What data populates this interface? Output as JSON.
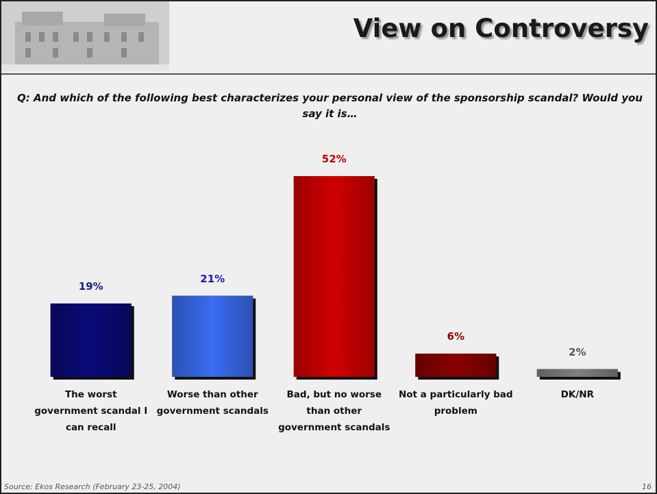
{
  "chart_data": {
    "type": "bar",
    "title": "View on Controversy",
    "subtitle": "Q: And which of the following best characterizes your personal view of the sponsorship scandal? Would you say it is…",
    "categories": [
      "The worst government scandal I can recall",
      "Worse than other government scandals",
      "Bad, but no worse than other government scandals",
      "Not a particularly bad problem",
      "DK/NR"
    ],
    "values": [
      19,
      21,
      52,
      6,
      2
    ],
    "value_labels": [
      "19%",
      "21%",
      "52%",
      "6%",
      "2%"
    ],
    "colors": [
      "#0a0a78",
      "#3a6cf0",
      "#d00000",
      "#8a0000",
      "#808080"
    ],
    "label_colors": [
      "#1a1a8c",
      "#1a1ab0",
      "#c00000",
      "#8b0000",
      "#555555"
    ],
    "source": "Source: Ekos Research (February 23-25, 2004)",
    "page": "16"
  }
}
